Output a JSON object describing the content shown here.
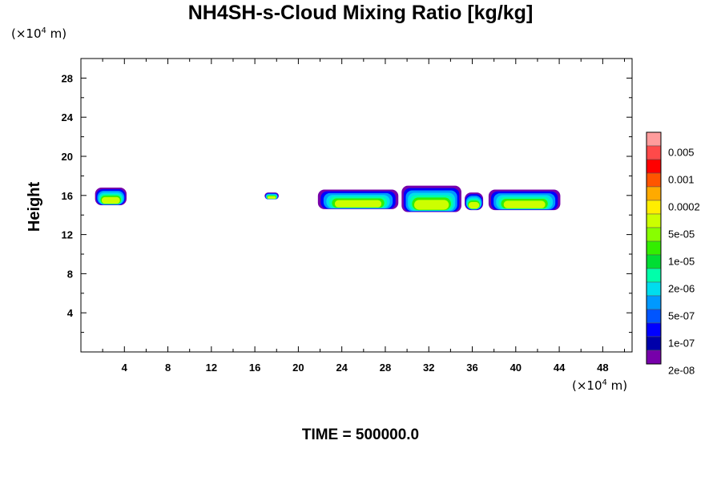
{
  "chart_data": {
    "type": "heatmap",
    "title": "NH4SH-s-Cloud Mixing Ratio [kg/kg]",
    "ylabel": "Height",
    "xlabel": "",
    "x_unit": "(×10",
    "x_unit_exp": "4",
    "x_unit_end": " m)",
    "y_unit": "(×10",
    "y_unit_exp": "4",
    "y_unit_end": " m)",
    "xlim": [
      0,
      50.7
    ],
    "ylim": [
      0,
      30
    ],
    "x_ticks": [
      4,
      8,
      12,
      16,
      20,
      24,
      28,
      32,
      36,
      40,
      44,
      48
    ],
    "y_ticks": [
      4,
      8,
      12,
      16,
      20,
      24,
      28
    ],
    "footer": "TIME = 500000.0",
    "colorbar": {
      "colors": [
        "#ff9c9c",
        "#ff4a4a",
        "#ff0000",
        "#ff5500",
        "#ffaa00",
        "#ffee00",
        "#ccff00",
        "#88ff00",
        "#33ee00",
        "#00dd33",
        "#00ffaa",
        "#00ddee",
        "#0099ff",
        "#0055ff",
        "#0000ff",
        "#0000aa",
        "#7700aa"
      ],
      "labels": [
        "0.005",
        "0.001",
        "0.0002",
        "5e-05",
        "1e-05",
        "2e-06",
        "5e-07",
        "1e-07",
        "2e-08"
      ]
    },
    "cloud_layers": [
      {
        "x": [
          1.3,
          4.2
        ],
        "y": [
          15.0,
          16.8
        ]
      },
      {
        "x": [
          16.9,
          18.2
        ],
        "y": [
          15.6,
          16.3
        ]
      },
      {
        "x": [
          21.8,
          29.2
        ],
        "y": [
          14.6,
          16.6
        ]
      },
      {
        "x": [
          29.5,
          35.0
        ],
        "y": [
          14.3,
          17.0
        ]
      },
      {
        "x": [
          35.3,
          37.0
        ],
        "y": [
          14.5,
          16.3
        ]
      },
      {
        "x": [
          37.5,
          44.1
        ],
        "y": [
          14.5,
          16.6
        ]
      }
    ]
  }
}
